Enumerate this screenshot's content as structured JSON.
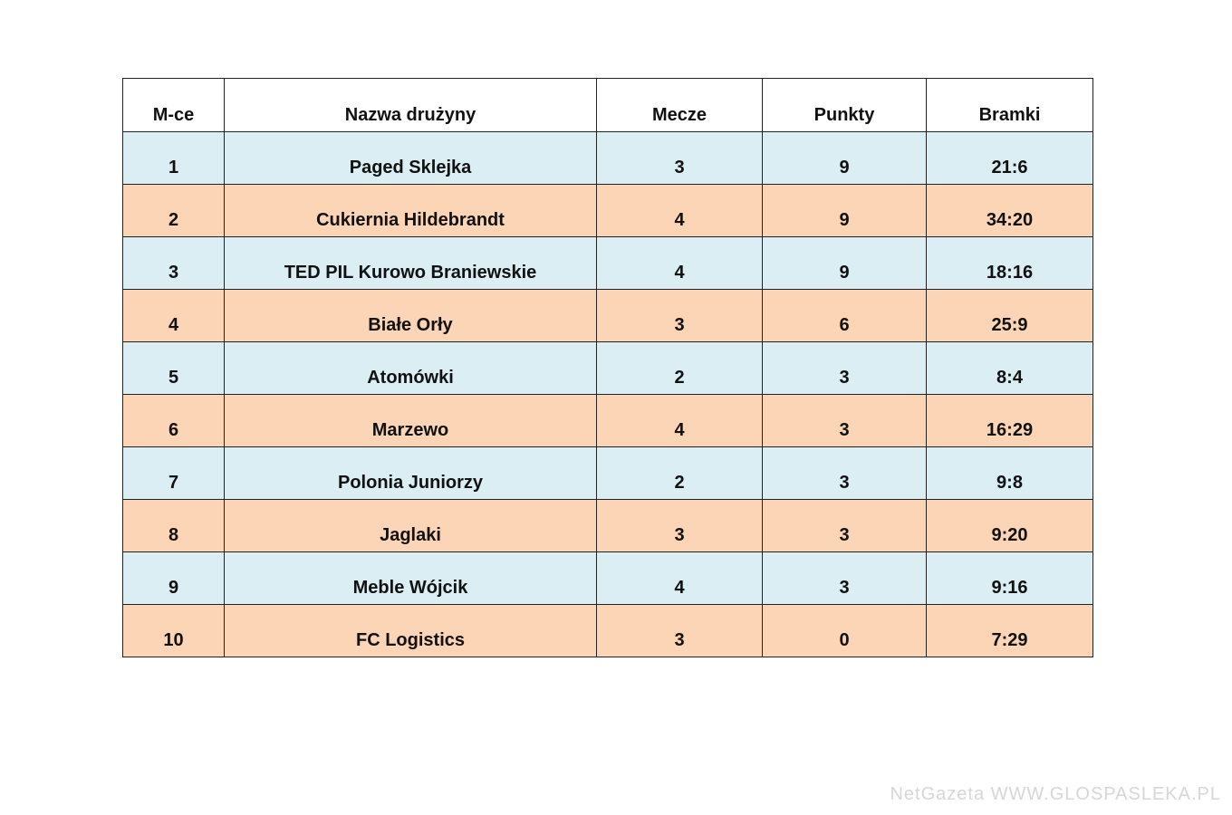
{
  "table": {
    "header": [
      "M-ce",
      "Nazwa drużyny",
      "Mecze",
      "Punkty",
      "Bramki"
    ],
    "rows": [
      [
        1,
        "Paged Sklejka",
        3,
        9,
        "21:6"
      ],
      [
        2,
        "Cukiernia Hildebrandt",
        4,
        9,
        "34:20"
      ],
      [
        3,
        "TED PIL Kurowo Braniewskie",
        4,
        9,
        "18:16"
      ],
      [
        4,
        "Białe Orły",
        3,
        6,
        "25:9"
      ],
      [
        5,
        "Atomówki",
        2,
        3,
        "8:4"
      ],
      [
        6,
        "Marzewo",
        4,
        3,
        "16:29"
      ],
      [
        7,
        "Polonia Juniorzy",
        2,
        3,
        "9:8"
      ],
      [
        8,
        "Jaglaki",
        3,
        3,
        "9:20"
      ],
      [
        9,
        "Meble Wójcik",
        4,
        3,
        "9:16"
      ],
      [
        10,
        "FC Logistics",
        3,
        0,
        "7:29"
      ]
    ]
  },
  "watermark": "NetGazeta WWW.GLOSPASLEKA.PL"
}
